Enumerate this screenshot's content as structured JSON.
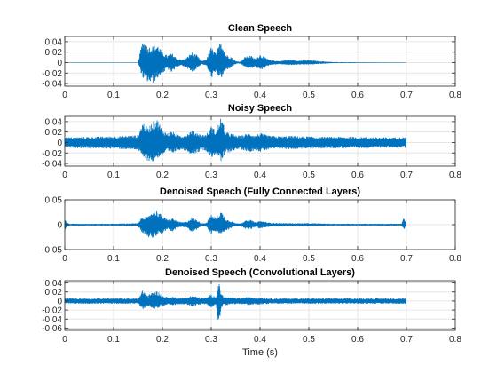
{
  "chart_data": [
    {
      "type": "line",
      "title": "Clean Speech",
      "xlabel": "",
      "ylabel": "",
      "xlim": [
        0,
        0.8
      ],
      "ylim": [
        -0.045,
        0.05
      ],
      "xticks": [
        0,
        0.1,
        0.2,
        0.3,
        0.4,
        0.5,
        0.6,
        0.7,
        0.8
      ],
      "xtick_labels": [
        "0",
        "0.1",
        "0.2",
        "0.3",
        "0.4",
        "0.5",
        "0.6",
        "0.7",
        "0.8"
      ],
      "yticks": [
        0.04,
        0.02,
        0,
        -0.02,
        -0.04
      ],
      "ytick_labels": [
        "0.04",
        "0.02",
        "0",
        "-0.02",
        "-0.04"
      ],
      "grid": true,
      "series_color": "#0072BD",
      "envelope": {
        "t": [
          0,
          0.15,
          0.16,
          0.17,
          0.18,
          0.19,
          0.2,
          0.21,
          0.22,
          0.23,
          0.24,
          0.25,
          0.26,
          0.27,
          0.28,
          0.29,
          0.3,
          0.31,
          0.32,
          0.33,
          0.34,
          0.35,
          0.36,
          0.37,
          0.38,
          0.39,
          0.4,
          0.42,
          0.44,
          0.46,
          0.48,
          0.5,
          0.52,
          0.55,
          0.6,
          0.65,
          0.7
        ],
        "upper": [
          0.0005,
          0.0005,
          0.046,
          0.03,
          0.032,
          0.035,
          0.02,
          0.014,
          0.018,
          0.008,
          0.006,
          0.01,
          0.02,
          0.015,
          0.003,
          0.006,
          0.03,
          0.018,
          0.045,
          0.016,
          0.012,
          0.003,
          0.002,
          0.012,
          0.014,
          0.008,
          0.016,
          0.005,
          0.003,
          0.006,
          0.004,
          0.005,
          0.003,
          0.001,
          0.0008,
          0.0006,
          0.0005
        ],
        "lower": [
          -0.0005,
          -0.0005,
          -0.03,
          -0.038,
          -0.04,
          -0.03,
          -0.022,
          -0.012,
          -0.02,
          -0.008,
          -0.006,
          -0.01,
          -0.02,
          -0.012,
          -0.003,
          -0.006,
          -0.03,
          -0.02,
          -0.032,
          -0.015,
          -0.01,
          -0.003,
          -0.002,
          -0.01,
          -0.012,
          -0.008,
          -0.015,
          -0.005,
          -0.003,
          -0.005,
          -0.004,
          -0.004,
          -0.003,
          -0.001,
          -0.0008,
          -0.0006,
          -0.0005
        ]
      }
    },
    {
      "type": "line",
      "title": "Noisy Speech",
      "xlabel": "",
      "ylabel": "",
      "xlim": [
        0,
        0.8
      ],
      "ylim": [
        -0.045,
        0.05
      ],
      "xticks": [
        0,
        0.1,
        0.2,
        0.3,
        0.4,
        0.5,
        0.6,
        0.7,
        0.8
      ],
      "xtick_labels": [
        "0",
        "0.1",
        "0.2",
        "0.3",
        "0.4",
        "0.5",
        "0.6",
        "0.7",
        "0.8"
      ],
      "yticks": [
        0.04,
        0.02,
        0,
        -0.02,
        -0.04
      ],
      "ytick_labels": [
        "0.04",
        "0.02",
        "0",
        "-0.02",
        "-0.04"
      ],
      "grid": true,
      "series_color": "#0072BD",
      "envelope": {
        "t": [
          0,
          0.05,
          0.1,
          0.15,
          0.16,
          0.17,
          0.18,
          0.19,
          0.2,
          0.21,
          0.22,
          0.23,
          0.24,
          0.25,
          0.26,
          0.27,
          0.28,
          0.29,
          0.3,
          0.31,
          0.32,
          0.33,
          0.34,
          0.35,
          0.36,
          0.37,
          0.38,
          0.39,
          0.4,
          0.42,
          0.44,
          0.46,
          0.48,
          0.5,
          0.52,
          0.55,
          0.6,
          0.65,
          0.7
        ],
        "upper": [
          0.01,
          0.011,
          0.012,
          0.014,
          0.04,
          0.028,
          0.04,
          0.045,
          0.025,
          0.018,
          0.022,
          0.015,
          0.014,
          0.016,
          0.024,
          0.02,
          0.015,
          0.016,
          0.032,
          0.022,
          0.05,
          0.02,
          0.018,
          0.014,
          0.013,
          0.016,
          0.018,
          0.014,
          0.018,
          0.013,
          0.012,
          0.013,
          0.012,
          0.012,
          0.011,
          0.011,
          0.011,
          0.01,
          0.01
        ],
        "lower": [
          -0.01,
          -0.011,
          -0.012,
          -0.014,
          -0.03,
          -0.035,
          -0.038,
          -0.03,
          -0.025,
          -0.018,
          -0.022,
          -0.015,
          -0.014,
          -0.016,
          -0.024,
          -0.02,
          -0.015,
          -0.016,
          -0.03,
          -0.022,
          -0.038,
          -0.02,
          -0.018,
          -0.014,
          -0.013,
          -0.016,
          -0.018,
          -0.014,
          -0.018,
          -0.013,
          -0.012,
          -0.013,
          -0.012,
          -0.012,
          -0.011,
          -0.011,
          -0.011,
          -0.01,
          -0.01
        ]
      }
    },
    {
      "type": "line",
      "title": "Denoised Speech (Fully Connected Layers)",
      "xlabel": "",
      "ylabel": "",
      "xlim": [
        0,
        0.8
      ],
      "ylim": [
        -0.05,
        0.05
      ],
      "xticks": [
        0,
        0.1,
        0.2,
        0.3,
        0.4,
        0.5,
        0.6,
        0.7,
        0.8
      ],
      "xtick_labels": [
        "0",
        "0.1",
        "0.2",
        "0.3",
        "0.4",
        "0.5",
        "0.6",
        "0.7",
        "0.8"
      ],
      "yticks": [
        0.05,
        0,
        -0.05
      ],
      "ytick_labels": [
        "0.05",
        "0",
        "-0.05"
      ],
      "grid": true,
      "series_color": "#0072BD",
      "envelope": {
        "t": [
          0,
          0.005,
          0.01,
          0.05,
          0.1,
          0.15,
          0.16,
          0.17,
          0.18,
          0.19,
          0.2,
          0.21,
          0.22,
          0.23,
          0.24,
          0.25,
          0.26,
          0.27,
          0.28,
          0.29,
          0.3,
          0.31,
          0.32,
          0.33,
          0.34,
          0.35,
          0.36,
          0.37,
          0.38,
          0.39,
          0.4,
          0.42,
          0.45,
          0.5,
          0.55,
          0.6,
          0.65,
          0.69,
          0.695,
          0.7
        ],
        "upper": [
          0.012,
          0.004,
          0.002,
          0.002,
          0.002,
          0.003,
          0.018,
          0.015,
          0.03,
          0.028,
          0.018,
          0.01,
          0.014,
          0.007,
          0.005,
          0.006,
          0.015,
          0.01,
          0.003,
          0.004,
          0.02,
          0.014,
          0.028,
          0.012,
          0.008,
          0.003,
          0.003,
          0.008,
          0.01,
          0.005,
          0.008,
          0.004,
          0.003,
          0.003,
          0.002,
          0.002,
          0.002,
          0.002,
          0.015,
          0.002
        ],
        "lower": [
          -0.012,
          -0.004,
          -0.002,
          -0.002,
          -0.002,
          -0.003,
          -0.018,
          -0.025,
          -0.028,
          -0.02,
          -0.018,
          -0.01,
          -0.014,
          -0.007,
          -0.005,
          -0.006,
          -0.015,
          -0.01,
          -0.003,
          -0.004,
          -0.02,
          -0.014,
          -0.02,
          -0.012,
          -0.008,
          -0.003,
          -0.003,
          -0.008,
          -0.01,
          -0.005,
          -0.008,
          -0.004,
          -0.003,
          -0.003,
          -0.002,
          -0.002,
          -0.002,
          -0.002,
          -0.01,
          -0.002
        ]
      }
    },
    {
      "type": "line",
      "title": "Denoised Speech (Convolutional Layers)",
      "xlabel": "Time (s)",
      "ylabel": "",
      "xlim": [
        0,
        0.8
      ],
      "ylim": [
        -0.065,
        0.045
      ],
      "xticks": [
        0,
        0.1,
        0.2,
        0.3,
        0.4,
        0.5,
        0.6,
        0.7,
        0.8
      ],
      "xtick_labels": [
        "0",
        "0.1",
        "0.2",
        "0.3",
        "0.4",
        "0.5",
        "0.6",
        "0.7",
        "0.8"
      ],
      "yticks": [
        0.04,
        0.02,
        0,
        -0.02,
        -0.04,
        -0.06
      ],
      "ytick_labels": [
        "0.04",
        "0.02",
        "0",
        "-0.02",
        "-0.04",
        "-0.06"
      ],
      "grid": true,
      "series_color": "#0072BD",
      "envelope": {
        "t": [
          0,
          0.05,
          0.1,
          0.15,
          0.16,
          0.17,
          0.18,
          0.19,
          0.2,
          0.21,
          0.22,
          0.23,
          0.24,
          0.25,
          0.26,
          0.27,
          0.28,
          0.29,
          0.3,
          0.31,
          0.315,
          0.32,
          0.325,
          0.33,
          0.34,
          0.35,
          0.36,
          0.37,
          0.38,
          0.39,
          0.4,
          0.42,
          0.45,
          0.5,
          0.55,
          0.6,
          0.65,
          0.7
        ],
        "upper": [
          0.006,
          0.006,
          0.006,
          0.006,
          0.025,
          0.012,
          0.02,
          0.022,
          0.012,
          0.009,
          0.01,
          0.008,
          0.007,
          0.008,
          0.012,
          0.01,
          0.007,
          0.007,
          0.015,
          0.01,
          0.044,
          0.02,
          0.01,
          0.009,
          0.008,
          0.007,
          0.007,
          0.008,
          0.009,
          0.007,
          0.008,
          0.006,
          0.006,
          0.006,
          0.006,
          0.006,
          0.006,
          0.006
        ],
        "lower": [
          -0.006,
          -0.006,
          -0.006,
          -0.006,
          -0.02,
          -0.012,
          -0.018,
          -0.015,
          -0.012,
          -0.009,
          -0.01,
          -0.008,
          -0.007,
          -0.008,
          -0.012,
          -0.01,
          -0.007,
          -0.007,
          -0.015,
          -0.01,
          -0.065,
          -0.018,
          -0.01,
          -0.009,
          -0.008,
          -0.007,
          -0.007,
          -0.008,
          -0.009,
          -0.007,
          -0.008,
          -0.006,
          -0.006,
          -0.006,
          -0.006,
          -0.006,
          -0.006,
          -0.006
        ]
      }
    }
  ]
}
